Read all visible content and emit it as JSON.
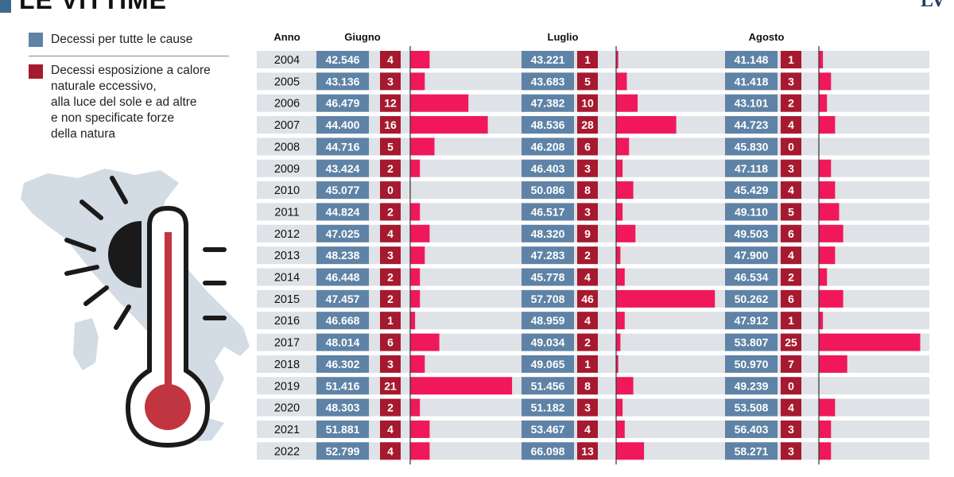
{
  "header": {
    "title": "LE VITTIME",
    "brand": "LV"
  },
  "legend": [
    {
      "label": "Decessi per tutte le cause",
      "color": "#5e83a6"
    },
    {
      "label": "Decessi esposizione a calore\nnaturale eccessivo,\nalla luce del sole e ad altre\ne non specificate forze\ndella natura",
      "color": "#a6192e"
    }
  ],
  "colors": {
    "total_box": "#5e83a6",
    "heat_box": "#a6192e",
    "bar": "#f0185a",
    "row_band": "#dfe2e6",
    "map": "#d3dbe4"
  },
  "chart_data": {
    "type": "table",
    "title": "LE VITTIME",
    "year_header": "Anno",
    "years": [
      "2004",
      "2005",
      "2006",
      "2007",
      "2008",
      "2009",
      "2010",
      "2011",
      "2012",
      "2013",
      "2014",
      "2015",
      "2016",
      "2017",
      "2018",
      "2019",
      "2020",
      "2021",
      "2022"
    ],
    "months": [
      {
        "name": "Giugno",
        "totals": [
          "42.546",
          "43.136",
          "46.479",
          "44.400",
          "44.716",
          "43.424",
          "45.077",
          "44.824",
          "47.025",
          "48.238",
          "46.448",
          "47.457",
          "46.668",
          "48.014",
          "46.302",
          "51.416",
          "48.303",
          "51.881",
          "52.799"
        ],
        "heat": [
          4,
          3,
          12,
          16,
          5,
          2,
          0,
          2,
          4,
          3,
          2,
          2,
          1,
          6,
          3,
          21,
          2,
          4,
          4
        ]
      },
      {
        "name": "Luglio",
        "totals": [
          "43.221",
          "43.683",
          "47.382",
          "48.536",
          "46.208",
          "46.403",
          "50.086",
          "46.517",
          "48.320",
          "47.283",
          "45.778",
          "57.708",
          "48.959",
          "49.034",
          "49.065",
          "51.456",
          "51.182",
          "53.467",
          "66.098"
        ],
        "heat": [
          1,
          5,
          10,
          28,
          6,
          3,
          8,
          3,
          9,
          2,
          4,
          46,
          4,
          2,
          1,
          8,
          3,
          4,
          13
        ]
      },
      {
        "name": "Agosto",
        "totals": [
          "41.148",
          "41.418",
          "43.101",
          "44.723",
          "45.830",
          "47.118",
          "45.429",
          "49.110",
          "49.503",
          "47.900",
          "46.534",
          "50.262",
          "47.912",
          "53.807",
          "50.970",
          "49.239",
          "53.508",
          "56.403",
          "58.271"
        ],
        "heat": [
          1,
          3,
          2,
          4,
          0,
          3,
          4,
          5,
          6,
          4,
          2,
          6,
          1,
          25,
          7,
          0,
          4,
          3,
          3
        ]
      }
    ]
  }
}
